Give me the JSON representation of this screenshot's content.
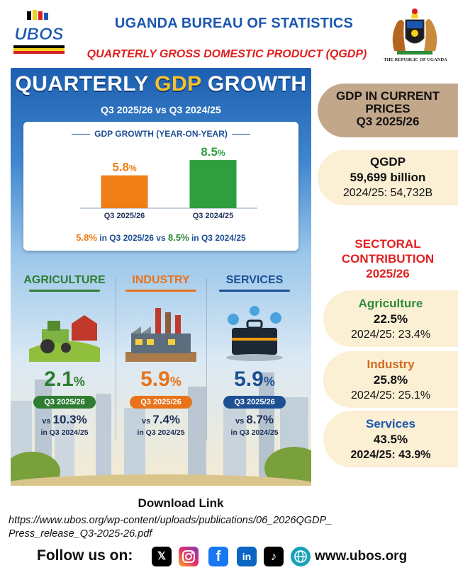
{
  "header": {
    "org_title": "UGANDA BUREAU OF STATISTICS",
    "report_title": "QUARTERLY GROSS DOMESTIC PRODUCT (QGDP)",
    "logo_text": "UBOS",
    "republic_text": "THE REPUBLIC OF UGANDA"
  },
  "infographic": {
    "title_part1": "QUARTERLY ",
    "title_part2": "GDP",
    "title_part3": " GROWTH",
    "subtitle": "Q3 2025/26 vs Q3 2024/25",
    "chart": {
      "title": "GDP GROWTH (YEAR-ON-YEAR)",
      "footer": {
        "v1": "5.8%",
        "t1": " in Q3 2025/26 vs ",
        "v2": "8.5%",
        "t2": " in Q3 2024/25"
      }
    },
    "sectors": [
      {
        "name": "AGRICULTURE",
        "value": "2.1",
        "unit": "%",
        "pill": "Q3 2025/26",
        "vs": "vs ",
        "prev": "10.3%",
        "prev_label": "in Q3 2024/25"
      },
      {
        "name": "INDUSTRY",
        "value": "5.9",
        "unit": "%",
        "pill": "Q3 2025/26",
        "vs": "vs ",
        "prev": "7.4%",
        "prev_label": "in Q3 2024/25"
      },
      {
        "name": "SERVICES",
        "value": "5.9",
        "unit": "%",
        "pill": "Q3 2025/26",
        "vs": "vs ",
        "prev": "8.7%",
        "prev_label": "in Q3 2024/25"
      }
    ]
  },
  "chart_data": {
    "type": "bar",
    "title": "GDP GROWTH (YEAR-ON-YEAR)",
    "categories": [
      "Q3 2025/26",
      "Q3 2024/25"
    ],
    "values": [
      5.8,
      8.5
    ],
    "value_labels": [
      "5.8",
      "8.5"
    ],
    "unit": "%",
    "colors": [
      "#f07e16",
      "#2e9e3e"
    ],
    "ylim": [
      0,
      10
    ],
    "grid": false,
    "xlabel": "",
    "ylabel": ""
  },
  "right": {
    "gdp_title": [
      "GDP IN CURRENT",
      "PRICES",
      "Q3 2025/26"
    ],
    "qgdp": {
      "label": "QGDP",
      "value": "59,699 billion",
      "prev": "2024/25: 54,732B"
    },
    "sectoral_heading": [
      "SECTORAL",
      "CONTRIBUTION",
      "2025/26"
    ],
    "sectors": [
      {
        "name": "Agriculture",
        "share": "22.5%",
        "prev": "2024/25: 23.4%",
        "color": "#2e8b3a"
      },
      {
        "name": "Industry",
        "share": "25.8%",
        "prev": "2024/25: 25.1%",
        "color": "#d2691e"
      },
      {
        "name": "Services",
        "share": "43.5%",
        "prev": "2024/25: 43.9%",
        "color": "#1a56b0"
      }
    ]
  },
  "footer": {
    "download_label": "Download Link",
    "download_url_line1": "https://www.ubos.org/wp-content/uploads/publications/06_2026QGDP_",
    "download_url_line2": "Press_release_Q3-2025-26.pdf",
    "follow_label": "Follow us on:",
    "website": "www.ubos.org",
    "social_icons": [
      "x-icon",
      "instagram-icon",
      "facebook-icon",
      "linkedin-icon",
      "tiktok-icon",
      "globe-icon"
    ]
  }
}
